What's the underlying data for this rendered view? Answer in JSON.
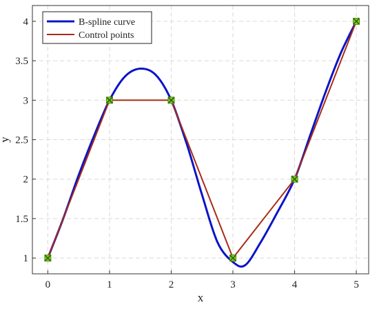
{
  "chart_data": {
    "type": "line",
    "xlabel": "x",
    "ylabel": "y",
    "xlim": [
      -0.25,
      5.2
    ],
    "ylim": [
      0.8,
      4.2
    ],
    "x_ticks": [
      0,
      1,
      2,
      3,
      4,
      5
    ],
    "y_ticks": [
      1,
      1.5,
      2,
      2.5,
      3,
      3.5,
      4
    ],
    "x_tick_labels": [
      "0",
      "1",
      "2",
      "3",
      "4",
      "5"
    ],
    "y_tick_labels": [
      "1",
      "1.5",
      "2",
      "2.5",
      "3",
      "3.5",
      "4"
    ],
    "grid": true,
    "legend_position": "top-left",
    "series": [
      {
        "name": "B-spline curve",
        "color": "#0a14c8",
        "style": "smooth-line",
        "x": [
          0,
          0.25,
          0.5,
          0.75,
          1.0,
          1.25,
          1.5,
          1.75,
          2.0,
          2.25,
          2.5,
          2.75,
          3.0,
          3.2,
          3.45,
          3.7,
          4.0,
          4.25,
          4.5,
          4.75,
          5.0
        ],
        "y": [
          1.0,
          1.5,
          2.05,
          2.55,
          3.0,
          3.3,
          3.4,
          3.32,
          3.0,
          2.45,
          1.8,
          1.2,
          0.95,
          0.91,
          1.2,
          1.55,
          2.0,
          2.55,
          3.1,
          3.6,
          4.0
        ]
      },
      {
        "name": "Control points",
        "color": "#a82a16",
        "style": "line-markers",
        "marker_color": "#7ed321",
        "x": [
          0,
          1,
          2,
          3,
          4,
          5
        ],
        "y": [
          1,
          3,
          3,
          1,
          2,
          4
        ]
      }
    ]
  }
}
